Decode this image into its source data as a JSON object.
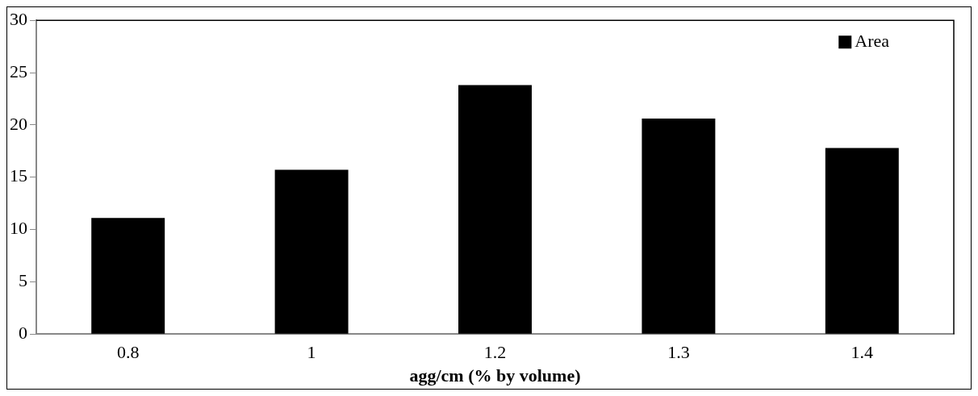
{
  "chart_data": {
    "type": "bar",
    "xlabel": "agg/cm (% by volume)",
    "categories": [
      "0.8",
      "1",
      "1.2",
      "1.3",
      "1.4"
    ],
    "series": [
      {
        "name": "Area",
        "color": "#000000",
        "values": [
          11.1,
          15.7,
          23.8,
          20.6,
          17.8
        ]
      }
    ],
    "ylim": [
      0,
      30
    ],
    "yticks": [
      0,
      5,
      10,
      15,
      20,
      25,
      30
    ],
    "grid": false,
    "legend": "top right"
  }
}
